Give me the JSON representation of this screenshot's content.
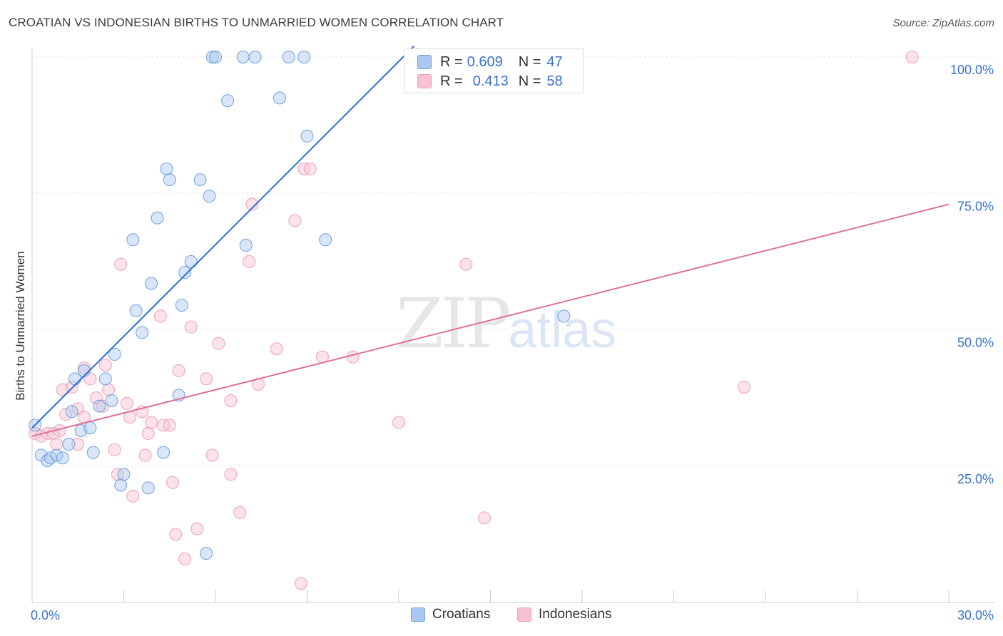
{
  "header": {
    "title": "CROATIAN VS INDONESIAN BIRTHS TO UNMARRIED WOMEN CORRELATION CHART",
    "source": "Source: ZipAtlas.com"
  },
  "watermark": {
    "zip": "ZIP",
    "atlas": "atlas"
  },
  "legend": {
    "rows": [
      {
        "r_label": "R =",
        "r_value": "0.609",
        "n_label": "N =",
        "n_value": "47",
        "color": "#aac8f0"
      },
      {
        "r_label": "R =",
        "r_value": "0.413",
        "n_label": "N =",
        "n_value": "58",
        "color": "#f8c0d0"
      }
    ]
  },
  "bottom_legend": [
    {
      "label": "Croatians",
      "color": "#aac8f0"
    },
    {
      "label": "Indonesians",
      "color": "#f8c0d0"
    }
  ],
  "chart_data": {
    "type": "scatter",
    "title": "CROATIAN VS INDONESIAN BIRTHS TO UNMARRIED WOMEN CORRELATION CHART",
    "xlabel": "",
    "ylabel": "Births to Unmarried Women",
    "xlim": [
      0,
      30
    ],
    "ylim": [
      0,
      100
    ],
    "x_tick_labels": [
      "0.0%",
      "30.0%"
    ],
    "y_ticks": [
      25,
      50,
      75,
      100
    ],
    "y_tick_labels": [
      "25.0%",
      "50.0%",
      "75.0%",
      "100.0%"
    ],
    "grid": true,
    "series": [
      {
        "name": "Croatians",
        "color": "#6fa0e0",
        "fill": "#aac8f0",
        "line_color": "#2a6fd0",
        "trend": {
          "x0": 0,
          "y0": 32,
          "x1": 12.5,
          "y1": 102
        },
        "points": [
          [
            0.1,
            32.5
          ],
          [
            0.3,
            27
          ],
          [
            0.5,
            26
          ],
          [
            0.6,
            26.5
          ],
          [
            0.8,
            27
          ],
          [
            1.0,
            26.5
          ],
          [
            1.2,
            29
          ],
          [
            1.3,
            35
          ],
          [
            1.4,
            41
          ],
          [
            1.6,
            31.5
          ],
          [
            1.7,
            42.5
          ],
          [
            1.9,
            32
          ],
          [
            2.0,
            27.5
          ],
          [
            2.2,
            36
          ],
          [
            2.4,
            41
          ],
          [
            2.6,
            37
          ],
          [
            2.7,
            45.5
          ],
          [
            2.9,
            21.5
          ],
          [
            3.0,
            23.5
          ],
          [
            3.3,
            66.5
          ],
          [
            3.4,
            53.5
          ],
          [
            3.6,
            49.5
          ],
          [
            3.8,
            21
          ],
          [
            3.9,
            58.5
          ],
          [
            4.1,
            70.5
          ],
          [
            4.3,
            27.5
          ],
          [
            4.4,
            79.5
          ],
          [
            4.5,
            77.5
          ],
          [
            4.8,
            38
          ],
          [
            4.9,
            54.5
          ],
          [
            5.0,
            60.5
          ],
          [
            5.2,
            62.5
          ],
          [
            5.5,
            77.5
          ],
          [
            5.7,
            9
          ],
          [
            5.8,
            74.5
          ],
          [
            5.9,
            100
          ],
          [
            6.0,
            100
          ],
          [
            6.4,
            92
          ],
          [
            6.9,
            100
          ],
          [
            7.0,
            65.5
          ],
          [
            7.3,
            100
          ],
          [
            8.1,
            92.5
          ],
          [
            8.4,
            100
          ],
          [
            8.9,
            100
          ],
          [
            9.0,
            85.5
          ],
          [
            9.6,
            66.5
          ],
          [
            17.4,
            52.5
          ]
        ]
      },
      {
        "name": "Indonesians",
        "color": "#eda0b8",
        "fill": "#f8c0d0",
        "line_color": "#e07098",
        "trend": {
          "x0": 0,
          "y0": 30.5,
          "x1": 30,
          "y1": 73
        },
        "points": [
          [
            0.1,
            31
          ],
          [
            0.3,
            30.5
          ],
          [
            0.5,
            31
          ],
          [
            0.7,
            31
          ],
          [
            0.8,
            29
          ],
          [
            0.9,
            31.5
          ],
          [
            1.0,
            39
          ],
          [
            1.1,
            34.5
          ],
          [
            1.3,
            39.5
          ],
          [
            1.5,
            35.5
          ],
          [
            1.5,
            29
          ],
          [
            1.7,
            34
          ],
          [
            1.7,
            43
          ],
          [
            1.9,
            41
          ],
          [
            2.1,
            37.5
          ],
          [
            2.3,
            36
          ],
          [
            2.4,
            43.5
          ],
          [
            2.5,
            39
          ],
          [
            2.7,
            28
          ],
          [
            2.8,
            23.5
          ],
          [
            2.9,
            62
          ],
          [
            3.1,
            36.5
          ],
          [
            3.2,
            34
          ],
          [
            3.3,
            19.5
          ],
          [
            3.6,
            35
          ],
          [
            3.7,
            27
          ],
          [
            3.8,
            31
          ],
          [
            3.9,
            33
          ],
          [
            4.2,
            52.5
          ],
          [
            4.3,
            32.5
          ],
          [
            4.5,
            32.5
          ],
          [
            4.6,
            22
          ],
          [
            4.7,
            12.5
          ],
          [
            4.8,
            42.5
          ],
          [
            5.0,
            8
          ],
          [
            5.2,
            50.5
          ],
          [
            5.4,
            13.5
          ],
          [
            5.7,
            41
          ],
          [
            5.9,
            27
          ],
          [
            6.1,
            47.5
          ],
          [
            6.5,
            23.5
          ],
          [
            6.5,
            37
          ],
          [
            6.8,
            16.5
          ],
          [
            7.1,
            62.5
          ],
          [
            7.2,
            73
          ],
          [
            7.4,
            40
          ],
          [
            8.0,
            46.5
          ],
          [
            8.6,
            70
          ],
          [
            8.9,
            79.5
          ],
          [
            9.1,
            79.5
          ],
          [
            8.8,
            3.5
          ],
          [
            9.5,
            45
          ],
          [
            10.5,
            45
          ],
          [
            12.0,
            33
          ],
          [
            14.2,
            62
          ],
          [
            14.8,
            15.5
          ],
          [
            23.3,
            39.5
          ],
          [
            28.8,
            100
          ]
        ]
      }
    ]
  }
}
